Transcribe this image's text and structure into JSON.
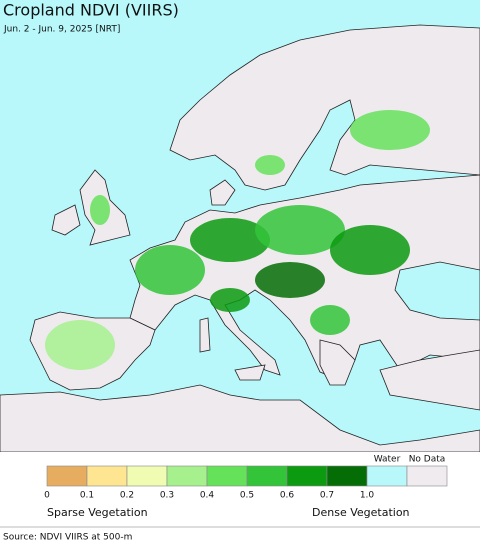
{
  "header": {
    "title": "Cropland NDVI (VIIRS)",
    "subtitle": "Jun. 2 - Jun. 9, 2025 [NRT]"
  },
  "legend": {
    "bins": [
      {
        "color": "#e6ad60"
      },
      {
        "color": "#fde591"
      },
      {
        "color": "#f0fcb2"
      },
      {
        "color": "#a6f18e"
      },
      {
        "color": "#66e25a"
      },
      {
        "color": "#33c43a"
      },
      {
        "color": "#0b9a10"
      },
      {
        "color": "#056d05"
      }
    ],
    "ticks": [
      "0",
      "0.1",
      "0.2",
      "0.3",
      "0.4",
      "0.5",
      "0.6",
      "0.7",
      "1.0"
    ],
    "water": {
      "label": "Water",
      "color": "#b8f8fb"
    },
    "no_data": {
      "label": "No Data",
      "color": "#efebef"
    },
    "sparse_label": "Sparse Vegetation",
    "dense_label": "Dense Vegetation"
  },
  "source": "Source: NDVI VIIRS at 500-m"
}
